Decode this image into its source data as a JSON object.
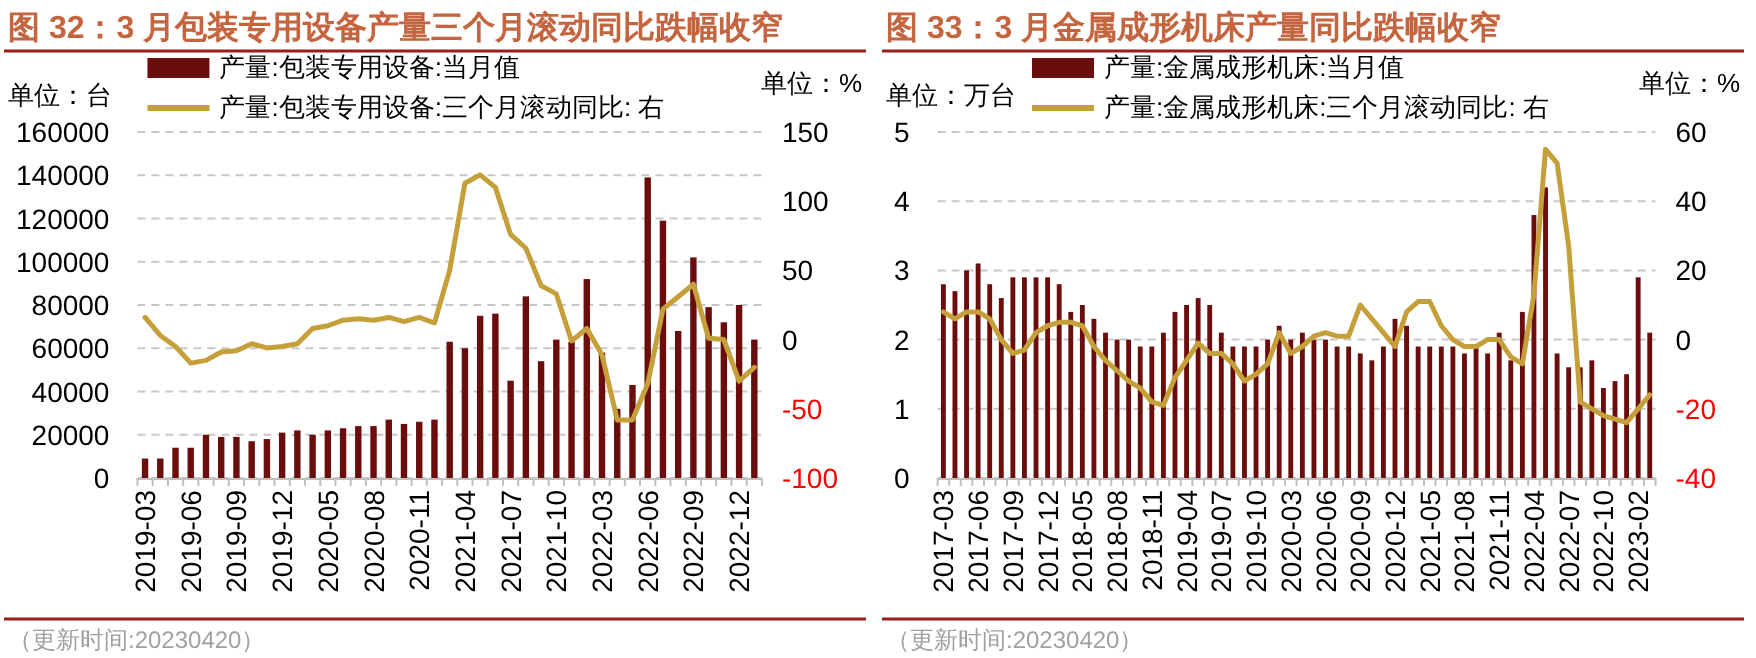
{
  "chart_data": [
    {
      "type": "bar",
      "title": "图 32：3 月包装专用设备产量三个月滚动同比跌幅收窄",
      "ylabel": "单位：台",
      "y2label": "单位：%",
      "categories": [
        "2019-03",
        null,
        null,
        "2019-06",
        null,
        null,
        "2019-09",
        null,
        null,
        "2019-12",
        null,
        null,
        "2020-05",
        null,
        null,
        "2020-08",
        null,
        null,
        "2020-11",
        null,
        null,
        "2021-04",
        null,
        null,
        "2021-07",
        null,
        null,
        "2021-10",
        null,
        null,
        "2022-03",
        null,
        null,
        "2022-06",
        null,
        null,
        "2022-09",
        null,
        null,
        "2022-12",
        null
      ],
      "series": [
        {
          "name": "产量:包装专用设备:当月值",
          "color": "#6b0d0d",
          "values": [
            9000,
            9000,
            14000,
            14000,
            20000,
            19000,
            19000,
            17000,
            18000,
            21000,
            22000,
            20000,
            22000,
            23000,
            24000,
            24000,
            27000,
            25000,
            26000,
            27000,
            63000,
            60000,
            75000,
            76000,
            45000,
            84000,
            54000,
            64000,
            63000,
            92000,
            58000,
            32000,
            43000,
            139000,
            119000,
            68000,
            102000,
            79000,
            72000,
            80000,
            64000
          ]
        },
        {
          "name": "产量:包装专用设备:三个月滚动同比: 右",
          "type": "line",
          "axis": "y2",
          "color": "#c5a03a",
          "values": [
            16,
            3,
            -5,
            -17,
            -15,
            -9,
            -8,
            -3,
            -6,
            -5,
            -3,
            8,
            10,
            14,
            15,
            14,
            16,
            13,
            16,
            12,
            50,
            113,
            119,
            110,
            76,
            66,
            39,
            33,
            -1,
            8,
            -11,
            -58,
            -58,
            -32,
            22,
            31,
            40,
            1,
            0,
            -30,
            -20
          ]
        }
      ],
      "ylim": [
        0,
        160000
      ],
      "yticks": [
        0,
        20000,
        40000,
        60000,
        80000,
        100000,
        120000,
        140000,
        160000
      ],
      "y2lim": [
        -100,
        150
      ],
      "y2ticks": [
        -100,
        -50,
        0,
        50,
        100,
        150
      ],
      "grid": "y",
      "legend": "top",
      "annotations": [
        "（更新时间:20230420）"
      ]
    },
    {
      "type": "bar",
      "title": "图 33：3 月金属成形机床产量同比跌幅收窄",
      "ylabel": "单位：万台",
      "y2label": "单位：%",
      "categories": [
        "2017-03",
        null,
        null,
        "2017-06",
        null,
        null,
        "2017-09",
        null,
        null,
        "2017-12",
        null,
        null,
        "2018-05",
        null,
        null,
        "2018-08",
        null,
        null,
        "2018-11",
        null,
        null,
        "2019-04",
        null,
        null,
        "2019-07",
        null,
        null,
        "2019-10",
        null,
        null,
        "2020-03",
        null,
        null,
        "2020-06",
        null,
        null,
        "2020-09",
        null,
        null,
        "2020-12",
        null,
        null,
        "2021-05",
        null,
        null,
        "2021-08",
        null,
        null,
        "2021-11",
        null,
        null,
        "2022-04",
        null,
        null,
        "2022-07",
        null,
        null,
        "2022-10",
        null,
        null,
        "2023-02",
        null
      ],
      "series": [
        {
          "name": "产量:金属成形机床:当月值",
          "color": "#6b0d0d",
          "values": [
            2.8,
            2.7,
            3.0,
            3.1,
            2.8,
            2.6,
            2.9,
            2.9,
            2.9,
            2.9,
            2.8,
            2.4,
            2.5,
            2.3,
            2.1,
            2.0,
            2.0,
            1.9,
            1.9,
            2.1,
            2.4,
            2.5,
            2.6,
            2.5,
            2.1,
            1.9,
            1.9,
            1.9,
            2.0,
            2.2,
            2.0,
            2.1,
            2.0,
            2.0,
            1.9,
            1.9,
            1.8,
            1.7,
            1.9,
            2.3,
            2.2,
            1.9,
            1.9,
            1.9,
            1.9,
            1.8,
            1.9,
            1.8,
            2.1,
            1.7,
            2.4,
            3.8,
            4.2,
            1.8,
            1.6,
            1.6,
            1.7,
            1.3,
            1.4,
            1.5,
            2.9,
            2.1
          ]
        },
        {
          "name": "产量:金属成形机床:三个月滚动同比: 右",
          "type": "line",
          "axis": "y2",
          "color": "#c5a03a",
          "values": [
            8,
            6,
            8,
            8,
            6,
            0,
            -4,
            -3,
            2,
            4,
            5,
            5,
            4,
            -2,
            -6,
            -9,
            -12,
            -14,
            -18,
            -19,
            -11,
            -6,
            -1,
            -4,
            -4,
            -7,
            -12,
            -10,
            -7,
            2,
            -4,
            -2,
            1,
            2,
            1,
            1,
            10,
            6,
            2,
            -2,
            8,
            11,
            11,
            4,
            0,
            -2,
            -2,
            0,
            0,
            -5,
            -7,
            13,
            55,
            51,
            27,
            -18,
            -20,
            -22,
            -23,
            -24,
            -20,
            -16
          ]
        }
      ],
      "ylim": [
        0,
        5
      ],
      "yticks": [
        0,
        1,
        2,
        3,
        4,
        5
      ],
      "y2lim": [
        -40,
        60
      ],
      "y2ticks": [
        -40,
        -20,
        0,
        20,
        40,
        60
      ],
      "grid": "y",
      "legend": "top",
      "annotations": [
        "（更新时间:20230420）"
      ]
    }
  ]
}
